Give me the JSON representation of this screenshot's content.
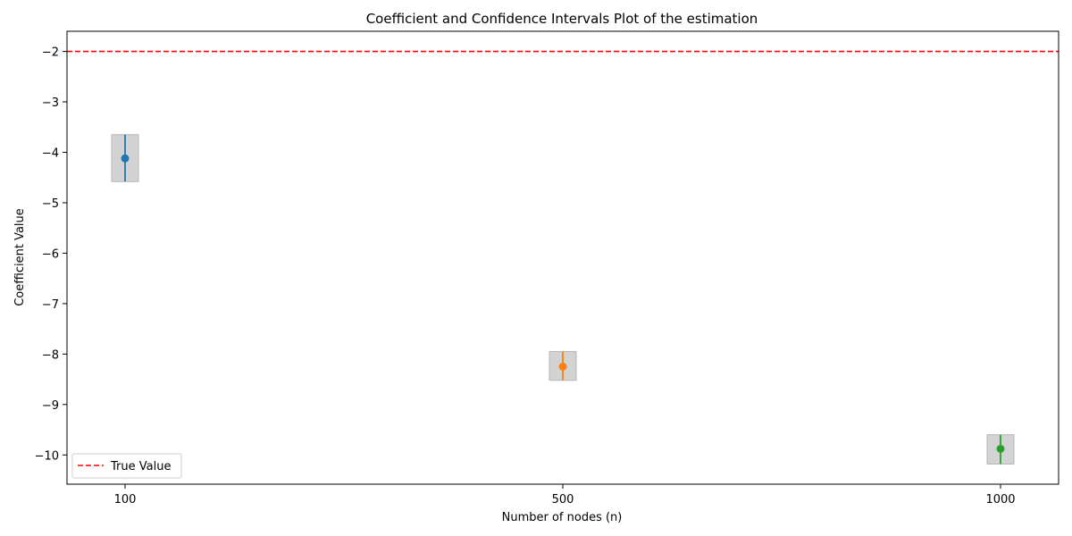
{
  "chart_data": {
    "type": "scatter",
    "title": "Coefficient and Confidence Intervals Plot of the estimation",
    "xlabel": "Number of nodes (n)",
    "ylabel": "Coefficient Value",
    "categories": [
      "100",
      "500",
      "1000"
    ],
    "ylim": [
      -10.58,
      -1.6
    ],
    "yticks": [
      -2,
      -3,
      -4,
      -5,
      -6,
      -7,
      -8,
      -9,
      -10
    ],
    "ytick_labels": [
      "−2",
      "−3",
      "−4",
      "−5",
      "−6",
      "−7",
      "−8",
      "−9",
      "−10"
    ],
    "points": [
      {
        "category": "100",
        "estimate": -4.12,
        "ci_low": -4.58,
        "ci_high": -3.65,
        "color": "#1f77b4"
      },
      {
        "category": "500",
        "estimate": -8.25,
        "ci_low": -8.52,
        "ci_high": -7.95,
        "color": "#ff7f0e"
      },
      {
        "category": "1000",
        "estimate": -9.88,
        "ci_low": -10.18,
        "ci_high": -9.6,
        "color": "#2ca02c"
      }
    ],
    "reference_line": {
      "value": -2,
      "label": "True Value",
      "color": "#ff0000",
      "style": "dashed"
    },
    "ci_box_color": "#c8c8c8",
    "grid": false,
    "legend": {
      "position": "lower-left",
      "entries": [
        "True Value"
      ]
    }
  }
}
